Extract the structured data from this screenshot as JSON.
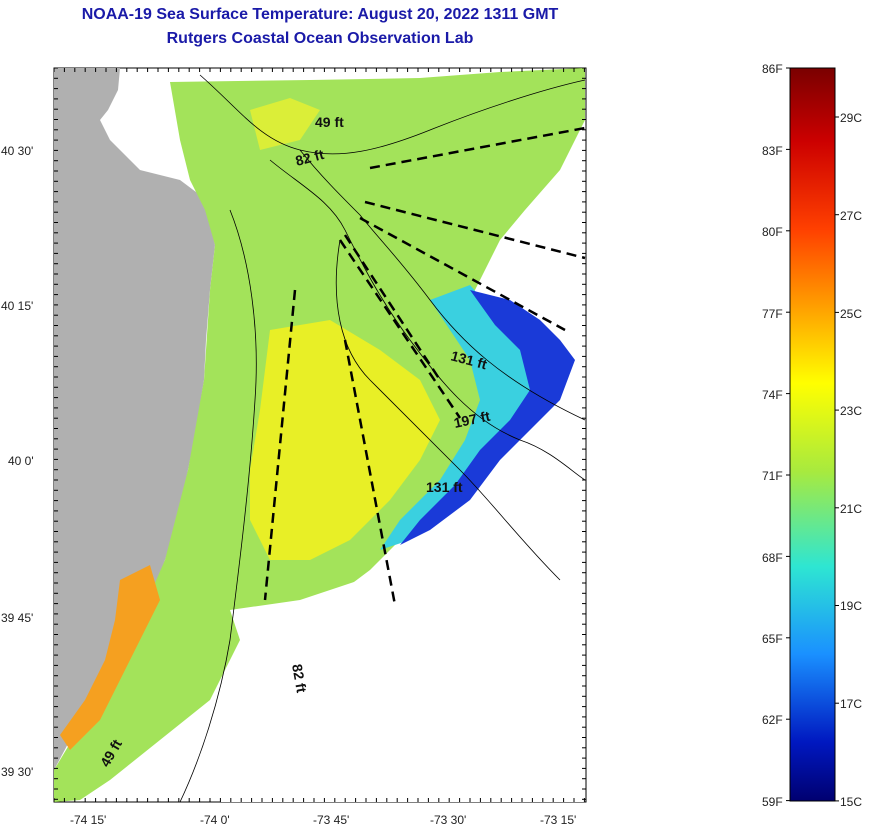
{
  "header": {
    "title": "NOAA-19 Sea Surface Temperature:  August 20, 2022 1311 GMT",
    "subtitle": "Rutgers Coastal Ocean Observation Lab"
  },
  "map": {
    "lat_labels": [
      "40 30'",
      "40 15'",
      "40 0'",
      "39 45'",
      "39 30'"
    ],
    "lon_labels": [
      "-74 15'",
      "-74 0'",
      "-73 45'",
      "-73 30'",
      "-73 15'"
    ],
    "depth_labels": [
      "49 ft",
      "82 ft",
      "131 ft",
      "197 ft",
      "131 ft",
      "82 ft",
      "49 ft"
    ],
    "land_color": "#b0b0b0"
  },
  "colorbar": {
    "f_labels": [
      "86F",
      "83F",
      "80F",
      "77F",
      "74F",
      "71F",
      "68F",
      "65F",
      "62F",
      "59F"
    ],
    "c_labels": [
      "29C",
      "27C",
      "25C",
      "23C",
      "21C",
      "19C",
      "17C",
      "15C"
    ],
    "colors": [
      "#7a0000",
      "#d40000",
      "#ff5a00",
      "#ffa500",
      "#ffff00",
      "#9be84a",
      "#2ee0d0",
      "#1aa0ff",
      "#0020c8",
      "#000080"
    ]
  }
}
